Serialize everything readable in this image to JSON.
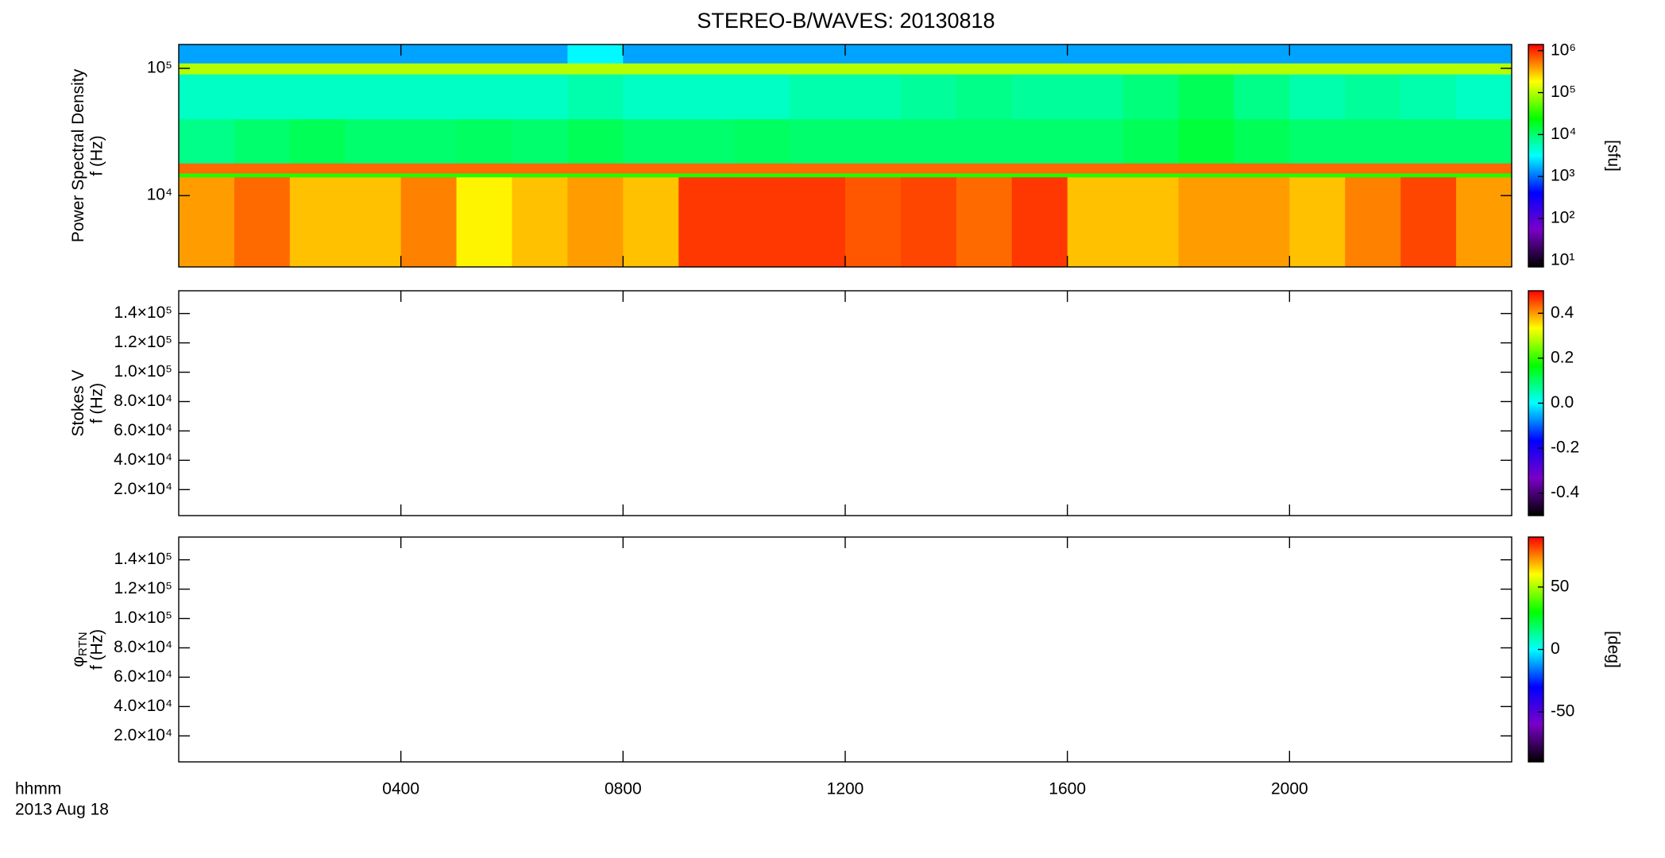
{
  "chart_data": [
    {
      "type": "heatmap",
      "title": "STEREO-B/WAVES: 20130818",
      "ylabel": [
        "Power Spectral Density",
        "f (Hz)"
      ],
      "xlim": [
        0,
        24
      ],
      "ylim": [
        2750,
        154000
      ],
      "ylog": true,
      "yticks": [
        {
          "value": 10000,
          "label": "10⁴"
        },
        {
          "value": 100000,
          "label": "10⁵"
        }
      ],
      "x_edges": [
        0,
        1,
        2,
        3,
        4,
        5,
        6,
        7,
        8,
        9,
        10,
        11,
        12,
        13,
        14,
        15,
        16,
        17,
        18,
        19,
        20,
        21,
        22,
        23,
        24
      ],
      "y_edges": [
        2750,
        14000,
        15000,
        18000,
        40000,
        90000,
        110000,
        154000
      ],
      "z": [
        [
          400000,
          600000,
          300000,
          300000,
          500000,
          200000,
          300000,
          400000,
          300000,
          900000,
          900000,
          900000,
          700000,
          800000,
          600000,
          900000,
          300000,
          300000,
          400000,
          400000,
          300000,
          500000,
          800000,
          400000
        ],
        [
          30000,
          30000,
          30000,
          30000,
          30000,
          30000,
          30000,
          30000,
          30000,
          30000,
          30000,
          30000,
          30000,
          30000,
          30000,
          30000,
          30000,
          30000,
          30000,
          30000,
          30000,
          30000,
          30000,
          30000
        ],
        [
          600000,
          600000,
          600000,
          600000,
          600000,
          600000,
          600000,
          600000,
          600000,
          600000,
          600000,
          600000,
          600000,
          600000,
          600000,
          600000,
          600000,
          600000,
          600000,
          600000,
          600000,
          600000,
          600000,
          600000
        ],
        [
          8000,
          10000,
          12000,
          10000,
          10000,
          11000,
          10000,
          12000,
          10000,
          10000,
          11000,
          10000,
          10000,
          10000,
          10000,
          10000,
          10000,
          12000,
          15000,
          12000,
          10000,
          10000,
          10000,
          10000
        ],
        [
          5000,
          5000,
          5000,
          5000,
          5000,
          5000,
          5000,
          6000,
          5000,
          5000,
          5000,
          6000,
          6000,
          7000,
          8000,
          7000,
          7000,
          9000,
          12000,
          8000,
          6000,
          7000,
          6000,
          5000
        ],
        [
          100000,
          100000,
          100000,
          100000,
          100000,
          100000,
          100000,
          100000,
          100000,
          100000,
          100000,
          100000,
          100000,
          100000,
          100000,
          100000,
          100000,
          100000,
          100000,
          100000,
          100000,
          100000,
          100000,
          100000
        ],
        [
          1500,
          1500,
          1500,
          1500,
          1500,
          1500,
          1500,
          3000,
          1500,
          1500,
          1500,
          1500,
          1500,
          1500,
          1500,
          1500,
          1500,
          1500,
          1500,
          1500,
          1500,
          1500,
          1500,
          1500
        ]
      ],
      "clim": [
        7,
        1400000
      ],
      "clog": true,
      "cticks": [
        {
          "value": 10,
          "label": "10¹"
        },
        {
          "value": 100,
          "label": "10²"
        },
        {
          "value": 1000,
          "label": "10³"
        },
        {
          "value": 10000,
          "label": "10⁴"
        },
        {
          "value": 100000,
          "label": "10⁵"
        },
        {
          "value": 1000000,
          "label": "10⁶"
        }
      ],
      "clabel": "[sfu]",
      "colorscale": [
        "#000000",
        "#7a00c8",
        "#0000ff",
        "#00ffff",
        "#00ff00",
        "#ffff00",
        "#ff0000"
      ]
    },
    {
      "type": "heatmap",
      "ylabel": [
        "Stokes V",
        "f (Hz)"
      ],
      "xlim": [
        0,
        24
      ],
      "ylim": [
        2300,
        155500
      ],
      "ylog": false,
      "yticks": [
        {
          "value": 20000,
          "label": "2.0×10⁴"
        },
        {
          "value": 40000,
          "label": "4.0×10⁴"
        },
        {
          "value": 60000,
          "label": "6.0×10⁴"
        },
        {
          "value": 80000,
          "label": "8.0×10⁴"
        },
        {
          "value": 100000,
          "label": "1.0×10⁵"
        },
        {
          "value": 120000,
          "label": "1.2×10⁵"
        },
        {
          "value": 140000,
          "label": "1.4×10⁵"
        }
      ],
      "clim": [
        -0.5,
        0.5
      ],
      "clog": false,
      "cticks": [
        -0.4,
        -0.2,
        {
          "value": 0,
          "label": "0.0"
        },
        0.2,
        0.4
      ],
      "colorscale": [
        "#000000",
        "#7a00c8",
        "#0000ff",
        "#00ffff",
        "#00ff00",
        "#ffff00",
        "#ff0000"
      ]
    },
    {
      "type": "heatmap",
      "ylabel": [
        "φ",
        "f (Hz)"
      ],
      "ylabel_sub": "RTN",
      "xlim": [
        0,
        24
      ],
      "ylim": [
        2300,
        155500
      ],
      "ylog": false,
      "yticks": [
        {
          "value": 20000,
          "label": "2.0×10⁴"
        },
        {
          "value": 40000,
          "label": "4.0×10⁴"
        },
        {
          "value": 60000,
          "label": "6.0×10⁴"
        },
        {
          "value": 80000,
          "label": "8.0×10⁴"
        },
        {
          "value": 100000,
          "label": "1.0×10⁵"
        },
        {
          "value": 120000,
          "label": "1.2×10⁵"
        },
        {
          "value": 140000,
          "label": "1.4×10⁵"
        }
      ],
      "xticks": [
        {
          "value": 4,
          "label": "0400"
        },
        {
          "value": 8,
          "label": "0800"
        },
        {
          "value": 12,
          "label": "1200"
        },
        {
          "value": 16,
          "label": "1600"
        },
        {
          "value": 20,
          "label": "2000"
        }
      ],
      "xlabel": "hhmm",
      "date": "2013 Aug 18",
      "clim": [
        -90,
        90
      ],
      "clog": false,
      "cticks": [
        -50,
        0,
        50
      ],
      "clabel": "[deg]",
      "colorscale": [
        "#000000",
        "#7a00c8",
        "#0000ff",
        "#00ffff",
        "#00ff00",
        "#ffff00",
        "#ff0000"
      ]
    }
  ]
}
